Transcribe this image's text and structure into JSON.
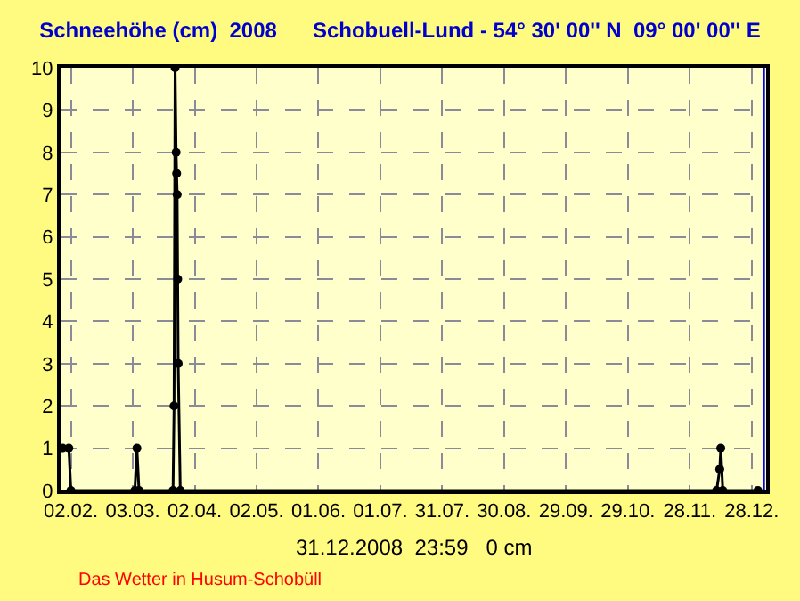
{
  "chart_data": {
    "type": "line",
    "title": "Schneehöhe (cm)  2008      Schobuell-Lund - 54° 30' 00'' N  09° 00' 00'' E",
    "annotations": [
      "31.12.2008  23:59   0 cm",
      "Das Wetter in Husum-Schobüll"
    ],
    "series": [
      {
        "color": "#000000",
        "x": [
          "2008-01-29",
          "2008-02-01",
          "2008-02-02",
          "2008-03-04",
          "2008-03-05",
          "2008-03-06",
          "2008-03-22T12:00",
          "2008-03-23T00:00",
          "2008-03-23T12:00",
          "2008-03-24T00:00",
          "2008-03-24T06:00",
          "2008-03-24T12:00",
          "2008-03-24T18:00",
          "2008-03-25T00:00",
          "2008-03-26",
          "2008-12-11",
          "2008-12-12T12:00",
          "2008-12-13",
          "2008-12-14",
          "2008-12-31"
        ],
        "values": [
          1,
          1,
          0,
          0,
          1,
          0,
          0,
          2,
          10,
          8,
          7.5,
          7,
          5,
          3,
          0,
          0,
          0.5,
          1,
          0,
          0
        ]
      }
    ],
    "marker": "circle",
    "xlim": [
      "2008-01-28",
      "2009-01-04"
    ],
    "xticks": [
      {
        "value": "2008-02-02",
        "label": "02.02."
      },
      {
        "value": "2008-03-03",
        "label": "03.03."
      },
      {
        "value": "2008-04-02",
        "label": "02.04."
      },
      {
        "value": "2008-05-02",
        "label": "02.05."
      },
      {
        "value": "2008-06-01",
        "label": "01.06."
      },
      {
        "value": "2008-07-01",
        "label": "01.07."
      },
      {
        "value": "2008-07-31",
        "label": "31.07."
      },
      {
        "value": "2008-08-30",
        "label": "30.08."
      },
      {
        "value": "2008-09-29",
        "label": "29.09."
      },
      {
        "value": "2008-10-29",
        "label": "29.10."
      },
      {
        "value": "2008-11-28",
        "label": "28.11."
      },
      {
        "value": "2008-12-28",
        "label": "28.12."
      }
    ],
    "ylim": [
      0,
      10
    ],
    "yticks": [
      0,
      1,
      2,
      3,
      4,
      5,
      6,
      7,
      8,
      9,
      10
    ],
    "ref_lines": [
      {
        "axis": "x",
        "value": "2009-01-03",
        "color": "#0000ff"
      }
    ],
    "grid": true
  }
}
